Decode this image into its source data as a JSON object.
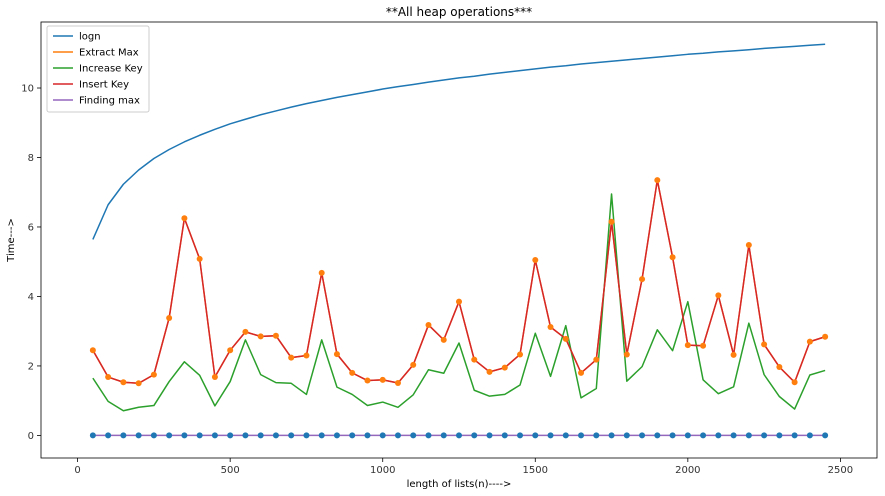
{
  "chart_data": {
    "type": "line",
    "title": "**All heap operations***",
    "xlabel": "length of lists(n)---->",
    "ylabel": "Time--->",
    "xlim": [
      -120,
      2620
    ],
    "ylim": [
      -0.65,
      11.9
    ],
    "xticks": [
      0,
      500,
      1000,
      1500,
      2000,
      2500
    ],
    "yticks": [
      0,
      2,
      4,
      6,
      8,
      10
    ],
    "grid": false,
    "legend_position": "upper left",
    "x": [
      50,
      100,
      150,
      200,
      250,
      300,
      350,
      400,
      450,
      500,
      550,
      600,
      650,
      700,
      750,
      800,
      850,
      900,
      950,
      1000,
      1050,
      1100,
      1150,
      1200,
      1250,
      1300,
      1350,
      1400,
      1450,
      1500,
      1550,
      1600,
      1650,
      1700,
      1750,
      1800,
      1850,
      1900,
      1950,
      2000,
      2050,
      2100,
      2150,
      2200,
      2250,
      2300,
      2350,
      2400,
      2450
    ],
    "series": [
      {
        "name": "logn",
        "color": "#1f77b4",
        "markers": false,
        "values": [
          5.64,
          6.64,
          7.23,
          7.64,
          7.97,
          8.23,
          8.45,
          8.64,
          8.81,
          8.97,
          9.1,
          9.23,
          9.34,
          9.45,
          9.55,
          9.64,
          9.73,
          9.81,
          9.89,
          9.97,
          10.04,
          10.1,
          10.17,
          10.23,
          10.29,
          10.34,
          10.4,
          10.45,
          10.5,
          10.55,
          10.6,
          10.64,
          10.69,
          10.73,
          10.77,
          10.81,
          10.85,
          10.89,
          10.93,
          10.97,
          11.0,
          11.04,
          11.07,
          11.1,
          11.14,
          11.17,
          11.2,
          11.23,
          11.26
        ]
      },
      {
        "name": "Extract Max",
        "color": "#ff7f0e",
        "markers": true,
        "values": [
          2.45,
          1.68,
          1.53,
          1.5,
          1.75,
          3.38,
          6.25,
          5.08,
          1.68,
          2.45,
          2.98,
          2.85,
          2.87,
          2.24,
          2.3,
          4.68,
          2.34,
          1.8,
          1.58,
          1.6,
          1.51,
          2.03,
          3.18,
          2.75,
          3.85,
          2.18,
          1.83,
          1.95,
          2.33,
          5.05,
          3.12,
          2.78,
          1.8,
          2.18,
          6.15,
          2.33,
          4.5,
          7.35,
          5.13,
          2.6,
          2.58,
          4.03,
          2.32,
          5.48,
          2.62,
          1.97,
          1.53,
          2.7,
          2.84
        ]
      },
      {
        "name": "Increase Key",
        "color": "#2ca02c",
        "markers": false,
        "values": [
          1.65,
          0.98,
          0.71,
          0.81,
          0.86,
          1.55,
          2.12,
          1.73,
          0.85,
          1.55,
          2.75,
          1.75,
          1.52,
          1.5,
          1.18,
          2.75,
          1.39,
          1.18,
          0.86,
          0.96,
          0.81,
          1.17,
          1.89,
          1.79,
          2.66,
          1.3,
          1.13,
          1.18,
          1.45,
          2.94,
          1.7,
          3.16,
          1.08,
          1.35,
          6.95,
          1.56,
          1.98,
          3.04,
          2.44,
          3.85,
          1.6,
          1.2,
          1.4,
          3.23,
          1.75,
          1.12,
          0.76,
          1.74,
          1.87
        ]
      },
      {
        "name": "Insert Key",
        "color": "#d62728",
        "markers": false,
        "values": [
          2.45,
          1.68,
          1.53,
          1.5,
          1.75,
          3.38,
          6.25,
          5.08,
          1.68,
          2.45,
          2.98,
          2.85,
          2.87,
          2.24,
          2.3,
          4.68,
          2.34,
          1.8,
          1.58,
          1.6,
          1.51,
          2.03,
          3.18,
          2.75,
          3.85,
          2.18,
          1.83,
          1.95,
          2.33,
          5.05,
          3.12,
          2.78,
          1.8,
          2.18,
          6.15,
          2.33,
          4.5,
          7.35,
          5.13,
          2.6,
          2.58,
          4.03,
          2.32,
          5.48,
          2.62,
          1.97,
          1.53,
          2.7,
          2.84
        ]
      },
      {
        "name": "Finding max",
        "color": "#9467bd",
        "markers": false,
        "values": [
          0,
          0,
          0,
          0,
          0,
          0,
          0,
          0,
          0,
          0,
          0,
          0,
          0,
          0,
          0,
          0,
          0,
          0,
          0,
          0,
          0,
          0,
          0,
          0,
          0,
          0,
          0,
          0,
          0,
          0,
          0,
          0,
          0,
          0,
          0,
          0,
          0,
          0,
          0,
          0,
          0,
          0,
          0,
          0,
          0,
          0,
          0,
          0,
          0
        ]
      }
    ],
    "scatter_markers": [
      {
        "series_ref": "Extract Max",
        "color": "#ff7f0e"
      },
      {
        "values": "zeros",
        "color": "#1f77b4"
      }
    ]
  }
}
